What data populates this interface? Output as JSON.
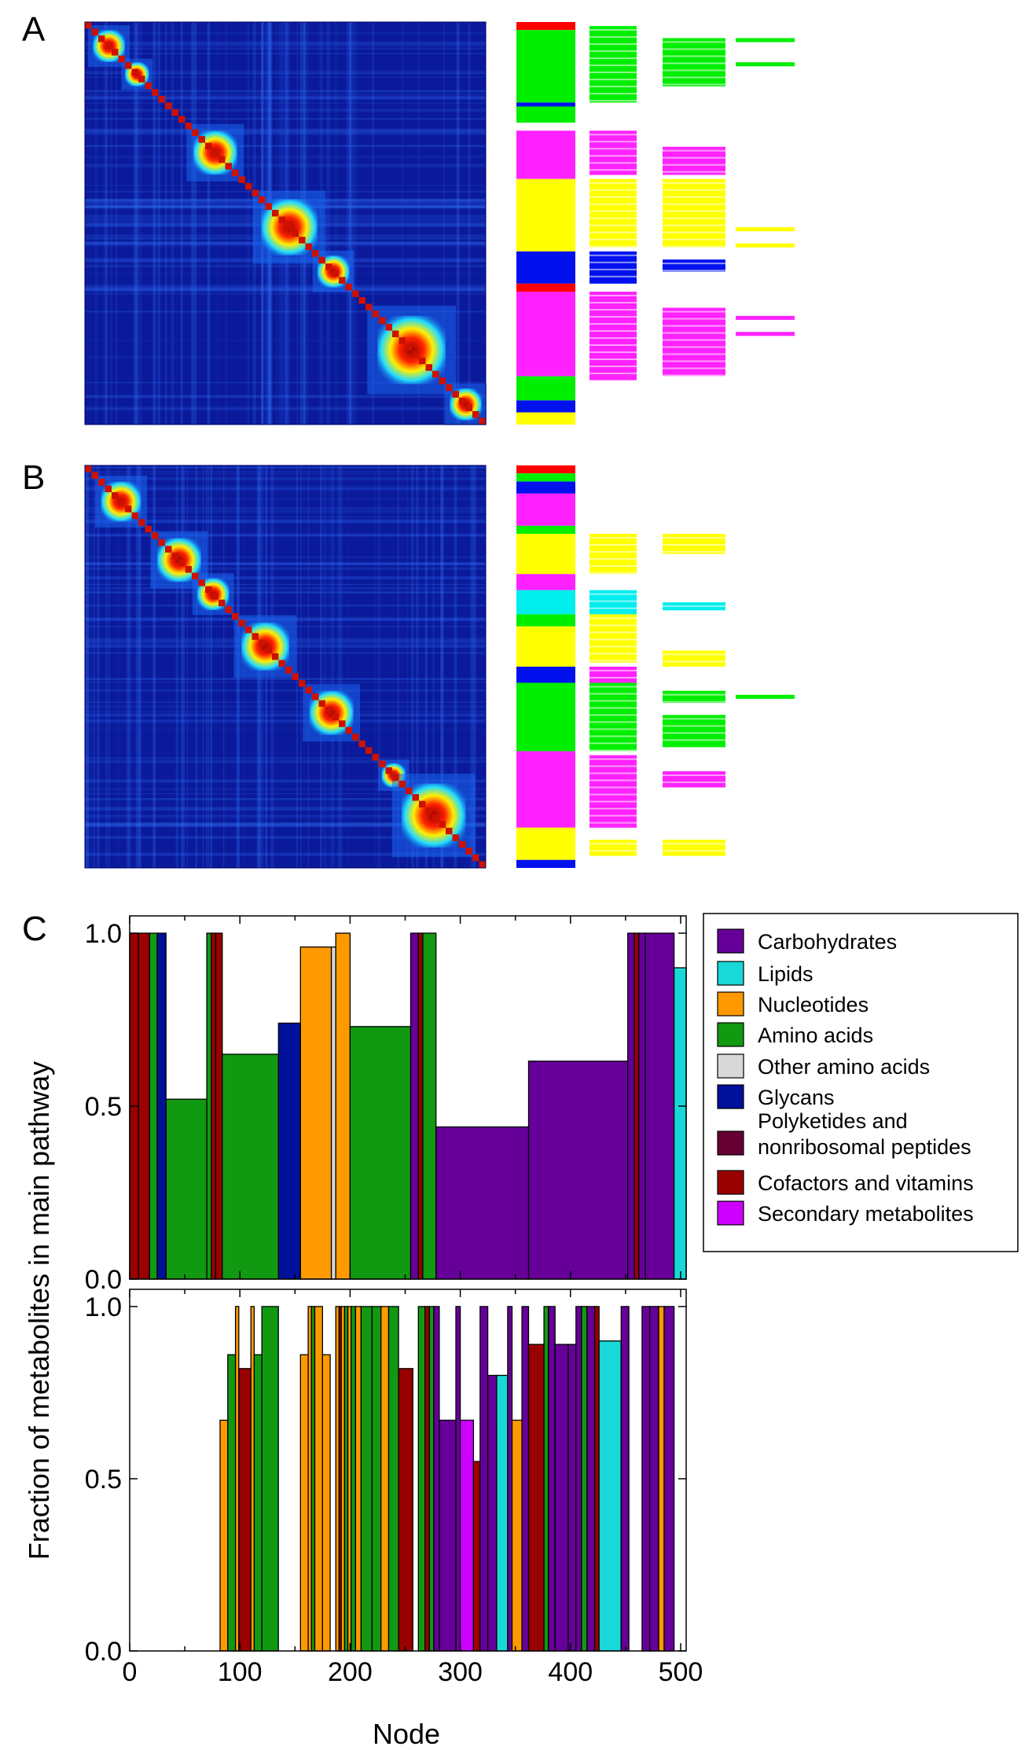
{
  "panels": {
    "a": "A",
    "b": "B",
    "c": "C"
  },
  "colors": {
    "heatmap_base": "#0a1a9a",
    "Carbohydrates": "#660099",
    "Lipids": "#18d8d8",
    "Nucleotides": "#ff9900",
    "Amino acids": "#119911",
    "Other amino acids": "#d8d8d8",
    "Glycans": "#001199",
    "Polyketides and nonribosomal peptides": "#660033",
    "Cofactors and vitamins": "#990000",
    "Secondary metabolites": "#cc00ff",
    "band_green": "#00ee00",
    "band_magenta": "#ff22ff",
    "band_yellow": "#ffff00",
    "band_blue": "#0011ee",
    "band_cyan": "#00eeee",
    "band_red": "#ff0000"
  },
  "heatmaps": [
    {
      "panel": "A",
      "blocks": [
        [
          0.02,
          0.1
        ],
        [
          0.1,
          0.16
        ],
        [
          0.27,
          0.38
        ],
        [
          0.44,
          0.58
        ],
        [
          0.58,
          0.66
        ],
        [
          0.73,
          0.9
        ],
        [
          0.91,
          0.99
        ]
      ]
    },
    {
      "panel": "B",
      "blocks": [
        [
          0.04,
          0.14
        ],
        [
          0.18,
          0.29
        ],
        [
          0.28,
          0.36
        ],
        [
          0.39,
          0.51
        ],
        [
          0.56,
          0.67
        ],
        [
          0.74,
          0.8
        ],
        [
          0.79,
          0.95
        ]
      ]
    }
  ],
  "cluster_bands_A": [
    {
      "column": 0,
      "segments": [
        [
          "band_red",
          0.0,
          0.02
        ],
        [
          "band_green",
          0.02,
          0.2
        ],
        [
          "band_blue",
          0.2,
          0.21
        ],
        [
          "band_green",
          0.21,
          0.25
        ],
        [
          "band_magenta",
          0.27,
          0.39
        ],
        [
          "band_yellow",
          0.39,
          0.57
        ],
        [
          "band_blue",
          0.57,
          0.65
        ],
        [
          "band_red",
          0.65,
          0.67
        ],
        [
          "band_magenta",
          0.67,
          0.88
        ],
        [
          "band_green",
          0.88,
          0.94
        ],
        [
          "band_blue",
          0.94,
          0.97
        ],
        [
          "band_yellow",
          0.97,
          1.0
        ]
      ]
    },
    {
      "column": 1,
      "segments": [
        [
          "band_green",
          0.01,
          0.2
        ],
        [
          "band_magenta",
          0.27,
          0.38
        ],
        [
          "band_yellow",
          0.39,
          0.56
        ],
        [
          "band_blue",
          0.57,
          0.65
        ],
        [
          "band_magenta",
          0.67,
          0.89
        ]
      ]
    },
    {
      "column": 2,
      "segments": [
        [
          "band_green",
          0.04,
          0.16
        ],
        [
          "band_magenta",
          0.31,
          0.38
        ],
        [
          "band_yellow",
          0.39,
          0.56
        ],
        [
          "band_blue",
          0.59,
          0.62
        ],
        [
          "band_magenta",
          0.71,
          0.88
        ]
      ]
    },
    {
      "column": 3,
      "segments": [
        [
          "band_green",
          0.04,
          0.05
        ],
        [
          "band_green",
          0.1,
          0.11
        ],
        [
          "band_yellow",
          0.51,
          0.52
        ],
        [
          "band_yellow",
          0.55,
          0.56
        ],
        [
          "band_magenta",
          0.73,
          0.74
        ],
        [
          "band_magenta",
          0.77,
          0.78
        ]
      ]
    }
  ],
  "cluster_bands_B": [
    {
      "column": 0,
      "segments": [
        [
          "band_red",
          0.0,
          0.02
        ],
        [
          "band_green",
          0.02,
          0.04
        ],
        [
          "band_blue",
          0.04,
          0.07
        ],
        [
          "band_magenta",
          0.07,
          0.15
        ],
        [
          "band_green",
          0.15,
          0.17
        ],
        [
          "band_yellow",
          0.17,
          0.27
        ],
        [
          "band_magenta",
          0.27,
          0.31
        ],
        [
          "band_cyan",
          0.31,
          0.37
        ],
        [
          "band_green",
          0.37,
          0.4
        ],
        [
          "band_yellow",
          0.4,
          0.5
        ],
        [
          "band_blue",
          0.5,
          0.54
        ],
        [
          "band_green",
          0.54,
          0.71
        ],
        [
          "band_magenta",
          0.71,
          0.9
        ],
        [
          "band_yellow",
          0.9,
          0.98
        ],
        [
          "band_blue",
          0.98,
          1.0
        ]
      ]
    },
    {
      "column": 1,
      "segments": [
        [
          "band_yellow",
          0.17,
          0.27
        ],
        [
          "band_cyan",
          0.31,
          0.37
        ],
        [
          "band_yellow",
          0.37,
          0.49
        ],
        [
          "band_magenta",
          0.5,
          0.54
        ],
        [
          "band_green",
          0.54,
          0.71
        ],
        [
          "band_magenta",
          0.72,
          0.9
        ],
        [
          "band_yellow",
          0.93,
          0.97
        ]
      ]
    },
    {
      "column": 2,
      "segments": [
        [
          "band_yellow",
          0.17,
          0.22
        ],
        [
          "band_cyan",
          0.34,
          0.36
        ],
        [
          "band_yellow",
          0.46,
          0.5
        ],
        [
          "band_green",
          0.56,
          0.59
        ],
        [
          "band_green",
          0.62,
          0.7
        ],
        [
          "band_magenta",
          0.76,
          0.8
        ],
        [
          "band_yellow",
          0.93,
          0.97
        ]
      ]
    },
    {
      "column": 3,
      "segments": [
        [
          "band_green",
          0.57,
          0.58
        ]
      ]
    }
  ],
  "chart_data": [
    {
      "type": "bar",
      "panel": "C-top",
      "title": "",
      "xlabel": "",
      "ylabel": "Fraction of metabolites in main pathway",
      "xlim": [
        0,
        505
      ],
      "ylim": [
        0.0,
        1.05
      ],
      "yticks": [
        "0.0",
        "0.5",
        "1.0"
      ],
      "bars": [
        {
          "x0": 0,
          "x1": 8,
          "y": 1.0,
          "cat": "Cofactors and vitamins"
        },
        {
          "x0": 8,
          "x1": 18,
          "y": 1.0,
          "cat": "Cofactors and vitamins"
        },
        {
          "x0": 18,
          "x1": 25,
          "y": 1.0,
          "cat": "Amino acids"
        },
        {
          "x0": 25,
          "x1": 33,
          "y": 1.0,
          "cat": "Glycans"
        },
        {
          "x0": 33,
          "x1": 70,
          "y": 0.52,
          "cat": "Amino acids"
        },
        {
          "x0": 70,
          "x1": 74,
          "y": 1.0,
          "cat": "Amino acids"
        },
        {
          "x0": 74,
          "x1": 78,
          "y": 1.0,
          "cat": "Cofactors and vitamins"
        },
        {
          "x0": 78,
          "x1": 84,
          "y": 1.0,
          "cat": "Cofactors and vitamins"
        },
        {
          "x0": 84,
          "x1": 135,
          "y": 0.65,
          "cat": "Amino acids"
        },
        {
          "x0": 135,
          "x1": 155,
          "y": 0.74,
          "cat": "Glycans"
        },
        {
          "x0": 155,
          "x1": 183,
          "y": 0.96,
          "cat": "Nucleotides"
        },
        {
          "x0": 183,
          "x1": 187,
          "y": 0.96,
          "cat": "Other amino acids"
        },
        {
          "x0": 187,
          "x1": 200,
          "y": 1.0,
          "cat": "Nucleotides"
        },
        {
          "x0": 200,
          "x1": 255,
          "y": 0.73,
          "cat": "Amino acids"
        },
        {
          "x0": 255,
          "x1": 262,
          "y": 1.0,
          "cat": "Carbohydrates"
        },
        {
          "x0": 262,
          "x1": 266,
          "y": 1.0,
          "cat": "Cofactors and vitamins"
        },
        {
          "x0": 266,
          "x1": 278,
          "y": 1.0,
          "cat": "Amino acids"
        },
        {
          "x0": 278,
          "x1": 362,
          "y": 0.44,
          "cat": "Carbohydrates"
        },
        {
          "x0": 362,
          "x1": 452,
          "y": 0.63,
          "cat": "Carbohydrates"
        },
        {
          "x0": 452,
          "x1": 458,
          "y": 1.0,
          "cat": "Carbohydrates"
        },
        {
          "x0": 458,
          "x1": 462,
          "y": 1.0,
          "cat": "Cofactors and vitamins"
        },
        {
          "x0": 462,
          "x1": 468,
          "y": 1.0,
          "cat": "Carbohydrates"
        },
        {
          "x0": 468,
          "x1": 494,
          "y": 1.0,
          "cat": "Carbohydrates"
        },
        {
          "x0": 494,
          "x1": 505,
          "y": 0.9,
          "cat": "Lipids"
        }
      ]
    },
    {
      "type": "bar",
      "panel": "C-bottom",
      "title": "",
      "xlabel": "Node",
      "ylabel": "Fraction of metabolites in main pathway",
      "xlim": [
        0,
        505
      ],
      "ylim": [
        0.0,
        1.05
      ],
      "xticks": [
        "0",
        "100",
        "200",
        "300",
        "400",
        "500"
      ],
      "xtick_values": [
        0,
        100,
        200,
        300,
        400,
        500
      ],
      "yticks": [
        "0.0",
        "0.5",
        "1.0"
      ],
      "bars": [
        {
          "x0": 82,
          "x1": 89,
          "y": 0.67,
          "cat": "Nucleotides"
        },
        {
          "x0": 89,
          "x1": 96,
          "y": 0.86,
          "cat": "Amino acids"
        },
        {
          "x0": 96,
          "x1": 99,
          "y": 1.0,
          "cat": "Nucleotides"
        },
        {
          "x0": 99,
          "x1": 110,
          "y": 0.82,
          "cat": "Cofactors and vitamins"
        },
        {
          "x0": 110,
          "x1": 113,
          "y": 1.0,
          "cat": "Nucleotides"
        },
        {
          "x0": 113,
          "x1": 120,
          "y": 0.86,
          "cat": "Amino acids"
        },
        {
          "x0": 120,
          "x1": 135,
          "y": 1.0,
          "cat": "Amino acids"
        },
        {
          "x0": 155,
          "x1": 162,
          "y": 0.86,
          "cat": "Nucleotides"
        },
        {
          "x0": 162,
          "x1": 165,
          "y": 1.0,
          "cat": "Nucleotides"
        },
        {
          "x0": 165,
          "x1": 168,
          "y": 1.0,
          "cat": "Amino acids"
        },
        {
          "x0": 168,
          "x1": 175,
          "y": 1.0,
          "cat": "Nucleotides"
        },
        {
          "x0": 175,
          "x1": 182,
          "y": 0.86,
          "cat": "Nucleotides"
        },
        {
          "x0": 187,
          "x1": 190,
          "y": 1.0,
          "cat": "Nucleotides"
        },
        {
          "x0": 190,
          "x1": 192,
          "y": 1.0,
          "cat": "Cofactors and vitamins"
        },
        {
          "x0": 192,
          "x1": 195,
          "y": 1.0,
          "cat": "Nucleotides"
        },
        {
          "x0": 195,
          "x1": 198,
          "y": 1.0,
          "cat": "Amino acids"
        },
        {
          "x0": 198,
          "x1": 201,
          "y": 1.0,
          "cat": "Nucleotides"
        },
        {
          "x0": 201,
          "x1": 205,
          "y": 1.0,
          "cat": "Amino acids"
        },
        {
          "x0": 205,
          "x1": 210,
          "y": 1.0,
          "cat": "Nucleotides"
        },
        {
          "x0": 210,
          "x1": 220,
          "y": 1.0,
          "cat": "Amino acids"
        },
        {
          "x0": 220,
          "x1": 228,
          "y": 1.0,
          "cat": "Amino acids"
        },
        {
          "x0": 228,
          "x1": 235,
          "y": 1.0,
          "cat": "Nucleotides"
        },
        {
          "x0": 235,
          "x1": 244,
          "y": 1.0,
          "cat": "Amino acids"
        },
        {
          "x0": 244,
          "x1": 257,
          "y": 0.82,
          "cat": "Cofactors and vitamins"
        },
        {
          "x0": 262,
          "x1": 268,
          "y": 1.0,
          "cat": "Amino acids"
        },
        {
          "x0": 268,
          "x1": 272,
          "y": 1.0,
          "cat": "Cofactors and vitamins"
        },
        {
          "x0": 272,
          "x1": 276,
          "y": 1.0,
          "cat": "Amino acids"
        },
        {
          "x0": 276,
          "x1": 281,
          "y": 1.0,
          "cat": "Carbohydrates"
        },
        {
          "x0": 281,
          "x1": 296,
          "y": 0.67,
          "cat": "Carbohydrates"
        },
        {
          "x0": 296,
          "x1": 300,
          "y": 1.0,
          "cat": "Carbohydrates"
        },
        {
          "x0": 300,
          "x1": 312,
          "y": 0.67,
          "cat": "Secondary metabolites"
        },
        {
          "x0": 312,
          "x1": 318,
          "y": 0.55,
          "cat": "Cofactors and vitamins"
        },
        {
          "x0": 318,
          "x1": 325,
          "y": 1.0,
          "cat": "Carbohydrates"
        },
        {
          "x0": 325,
          "x1": 333,
          "y": 0.8,
          "cat": "Carbohydrates"
        },
        {
          "x0": 333,
          "x1": 343,
          "y": 0.8,
          "cat": "Lipids"
        },
        {
          "x0": 343,
          "x1": 347,
          "y": 1.0,
          "cat": "Carbohydrates"
        },
        {
          "x0": 347,
          "x1": 356,
          "y": 0.67,
          "cat": "Nucleotides"
        },
        {
          "x0": 356,
          "x1": 362,
          "y": 1.0,
          "cat": "Carbohydrates"
        },
        {
          "x0": 362,
          "x1": 376,
          "y": 0.89,
          "cat": "Cofactors and vitamins"
        },
        {
          "x0": 376,
          "x1": 380,
          "y": 1.0,
          "cat": "Amino acids"
        },
        {
          "x0": 380,
          "x1": 386,
          "y": 1.0,
          "cat": "Carbohydrates"
        },
        {
          "x0": 386,
          "x1": 398,
          "y": 0.89,
          "cat": "Carbohydrates"
        },
        {
          "x0": 398,
          "x1": 405,
          "y": 0.89,
          "cat": "Carbohydrates"
        },
        {
          "x0": 405,
          "x1": 410,
          "y": 1.0,
          "cat": "Carbohydrates"
        },
        {
          "x0": 410,
          "x1": 415,
          "y": 1.0,
          "cat": "Amino acids"
        },
        {
          "x0": 415,
          "x1": 422,
          "y": 1.0,
          "cat": "Carbohydrates"
        },
        {
          "x0": 422,
          "x1": 426,
          "y": 1.0,
          "cat": "Cofactors and vitamins"
        },
        {
          "x0": 426,
          "x1": 446,
          "y": 0.9,
          "cat": "Lipids"
        },
        {
          "x0": 446,
          "x1": 453,
          "y": 1.0,
          "cat": "Carbohydrates"
        },
        {
          "x0": 465,
          "x1": 472,
          "y": 1.0,
          "cat": "Carbohydrates"
        },
        {
          "x0": 472,
          "x1": 480,
          "y": 1.0,
          "cat": "Carbohydrates"
        },
        {
          "x0": 480,
          "x1": 485,
          "y": 1.0,
          "cat": "Nucleotides"
        },
        {
          "x0": 485,
          "x1": 494,
          "y": 1.0,
          "cat": "Carbohydrates"
        }
      ]
    }
  ],
  "legend": {
    "items": [
      {
        "label": "Carbohydrates",
        "key": "Carbohydrates"
      },
      {
        "label": "Lipids",
        "key": "Lipids"
      },
      {
        "label": "Nucleotides",
        "key": "Nucleotides"
      },
      {
        "label": "Amino acids",
        "key": "Amino acids"
      },
      {
        "label": "Other amino acids",
        "key": "Other amino acids"
      },
      {
        "label": "Glycans",
        "key": "Glycans"
      },
      {
        "label": "Polyketides and",
        "label2": "nonribosomal peptides",
        "key": "Polyketides and nonribosomal peptides"
      },
      {
        "label": "Cofactors and vitamins",
        "key": "Cofactors and vitamins"
      },
      {
        "label": "Secondary metabolites",
        "key": "Secondary metabolites"
      }
    ]
  }
}
